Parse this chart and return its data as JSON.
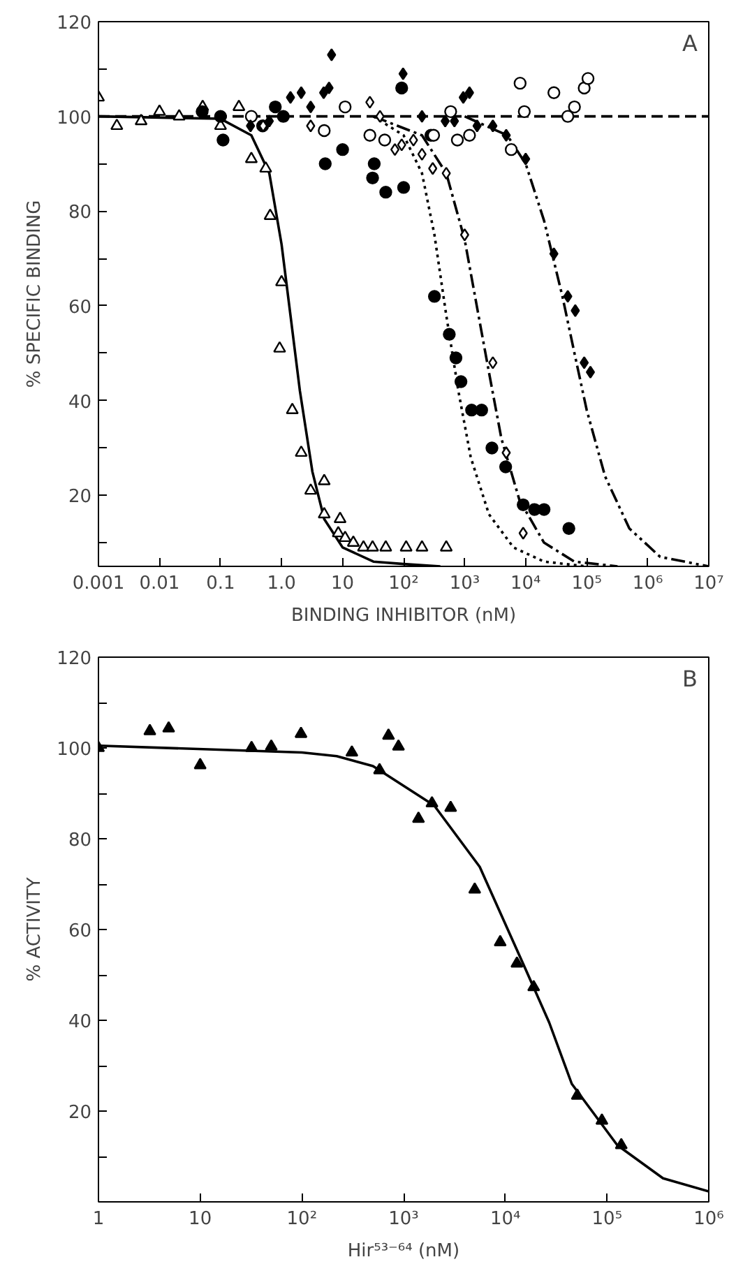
{
  "chart_data": [
    {
      "type": "scatter",
      "title": "A",
      "xlabel": "BINDING INHIBITOR (nM)",
      "ylabel": "% SPECIFIC BINDING",
      "log": "x",
      "grid": false,
      "xlim": [
        0.001,
        10000000
      ],
      "ylim": [
        5,
        120
      ],
      "xticks": [
        {
          "value": 0.001,
          "label": "0.001"
        },
        {
          "value": 0.01,
          "label": "0.01"
        },
        {
          "value": 0.1,
          "label": "0.1"
        },
        {
          "value": 1,
          "label": "1.0"
        },
        10,
        {
          "value": 100,
          "label": "10²"
        },
        {
          "value": 1000,
          "label": "10³"
        },
        {
          "value": 10000,
          "label": "10⁴"
        },
        {
          "value": 100000,
          "label": "10⁵"
        },
        {
          "value": 1000000,
          "label": "10⁶"
        },
        {
          "value": 10000000,
          "label": "10⁷"
        }
      ],
      "yticks": [
        {
          "value": 10,
          "label": null
        },
        20,
        {
          "value": 30,
          "label": null
        },
        40,
        {
          "value": 50,
          "label": null
        },
        60,
        {
          "value": 70,
          "label": null
        },
        80,
        {
          "value": 90,
          "label": null
        },
        100,
        {
          "value": 110,
          "label": null
        },
        120
      ],
      "series": [
        {
          "type": "line",
          "color": "#000000",
          "line_style": "solid",
          "marker": "none",
          "x": [
            0.001,
            0.1,
            0.32,
            0.63,
            1.0,
            1.4,
            2.0,
            3.2,
            5.0,
            10,
            32,
            100,
            400
          ],
          "values": [
            100,
            99.5,
            96,
            88,
            73,
            58,
            42,
            25,
            15,
            9,
            6,
            5.5,
            5
          ]
        },
        {
          "type": "line",
          "color": "#000000",
          "line_style": "dotted",
          "marker": "none",
          "x": [
            32,
            100,
            200,
            320,
            500,
            790,
            1260,
            2500,
            6300,
            20000,
            100000
          ],
          "values": [
            100,
            96,
            88,
            75,
            58,
            42,
            28,
            16,
            9,
            6,
            5
          ]
        },
        {
          "type": "line",
          "color": "#000000",
          "line_style": "dashdot",
          "marker": "none",
          "x": [
            32,
            200,
            500,
            1000,
            1580,
            2500,
            4000,
            7900,
            20000,
            63000,
            320000
          ],
          "values": [
            100,
            96,
            88,
            74,
            60,
            46,
            32,
            19,
            10,
            6,
            5
          ]
        },
        {
          "type": "line",
          "color": "#000000",
          "line_style": "dashdotdot",
          "marker": "none",
          "x": [
            1000,
            5000,
            10000,
            20000,
            40000,
            63000,
            100000,
            200000,
            500000,
            1600000,
            10000000
          ],
          "values": [
            100,
            96,
            90,
            78,
            62,
            50,
            38,
            24,
            13,
            7,
            5
          ]
        },
        {
          "type": "line",
          "color": "#000000",
          "line_style": "dashed",
          "marker": "none",
          "x": [
            0.001,
            10000000
          ],
          "values": [
            100,
            100
          ]
        },
        {
          "type": "scatter",
          "color": "#ffffff",
          "marker": "triangle",
          "x": [
            0.001,
            0.002,
            0.005,
            0.01,
            0.021,
            0.051,
            0.1,
            0.2,
            0.32,
            0.55,
            0.65,
            1.0,
            0.93,
            1.5,
            2.1,
            3.0,
            5.0,
            5.0,
            9.1,
            8.5,
            11,
            15,
            22,
            31,
            51,
            110,
            200,
            500
          ],
          "values": [
            104,
            98,
            99,
            101,
            100,
            102,
            98,
            102,
            91,
            89,
            79,
            65,
            51,
            38,
            29,
            21,
            23,
            16,
            15,
            12,
            11,
            10,
            9,
            9,
            9,
            9,
            9,
            9
          ]
        },
        {
          "type": "scatter",
          "color": "#000000",
          "marker": "circle",
          "x": [
            0.05,
            0.1,
            0.11,
            0.49,
            0.79,
            1.07,
            5.2,
            10,
            31,
            33,
            51,
            100,
            93,
            280,
            320,
            560,
            720,
            870,
            1300,
            1900,
            2800,
            4700,
            9100,
            14000,
            20000,
            51000
          ],
          "values": [
            101,
            100,
            95,
            98,
            102,
            100,
            90,
            93,
            87,
            90,
            84,
            85,
            106,
            96,
            62,
            54,
            49,
            44,
            38,
            38,
            30,
            26,
            18,
            17,
            17,
            13
          ]
        },
        {
          "type": "scatter",
          "color": "#ffffff",
          "marker": "diamond",
          "x": [
            0.5,
            3.0,
            28,
            41,
            72,
            93,
            145,
            200,
            300,
            500,
            1000,
            2900,
            4800,
            9100
          ],
          "values": [
            98,
            98,
            103,
            100,
            93,
            94,
            95,
            92,
            89,
            88,
            75,
            48,
            29,
            12
          ]
        },
        {
          "type": "scatter",
          "color": "#ffffff",
          "marker": "circle",
          "x": [
            0.32,
            5.0,
            11,
            28,
            49,
            310,
            590,
            760,
            1200,
            5800,
            8100,
            9500,
            29000,
            49000,
            63000,
            91000,
            105000
          ],
          "values": [
            100,
            97,
            102,
            96,
            95,
            96,
            101,
            95,
            96,
            93,
            107,
            101,
            105,
            100,
            102,
            106,
            108
          ]
        },
        {
          "type": "scatter",
          "color": "#000000",
          "marker": "diamond",
          "x": [
            0.31,
            0.63,
            1.4,
            2.1,
            3.0,
            4.9,
            6.6,
            6.0,
            98,
            200,
            480,
            680,
            950,
            1200,
            1600,
            2900,
            4800,
            10000,
            29000,
            49000,
            65000,
            91000,
            115000
          ],
          "values": [
            98,
            99,
            104,
            105,
            102,
            105,
            113,
            106,
            109,
            100,
            99,
            99,
            104,
            105,
            98,
            98,
            96,
            91,
            71,
            62,
            59,
            48,
            46
          ]
        }
      ]
    },
    {
      "type": "scatter",
      "title": "B",
      "xlabel": "Hir⁵³⁻⁶⁴ (nM)",
      "ylabel": "% ACTIVITY",
      "log": "x",
      "grid": false,
      "xlim": [
        1,
        1000000
      ],
      "ylim": [
        0,
        120
      ],
      "xticks": [
        1,
        10,
        {
          "value": 100,
          "label": "10²"
        },
        {
          "value": 1000,
          "label": "10³"
        },
        {
          "value": 10000,
          "label": "10⁴"
        },
        {
          "value": 100000,
          "label": "10⁵"
        },
        {
          "value": 1000000,
          "label": "10⁶"
        }
      ],
      "yticks": [
        {
          "value": 10,
          "label": null
        },
        20,
        {
          "value": 30,
          "label": null
        },
        40,
        {
          "value": 50,
          "label": null
        },
        60,
        {
          "value": 70,
          "label": null
        },
        80,
        {
          "value": 90,
          "label": null
        },
        100,
        {
          "value": 110,
          "label": null
        },
        120
      ],
      "series": [
        {
          "type": "line",
          "color": "#000000",
          "line_style": "solid",
          "marker": "none",
          "x": [
            1,
            100,
            220,
            500,
            2000,
            5600,
            16000,
            27000,
            45000,
            126000,
            355000,
            1000000
          ],
          "values": [
            100.5,
            99,
            98.2,
            96,
            87.3,
            73.8,
            51,
            39.5,
            26,
            12.5,
            5.2,
            2.3
          ]
        },
        {
          "type": "scatter",
          "color": "#000000",
          "marker": "triangle",
          "x": [
            1,
            3.2,
            4.9,
            10,
            32,
            50,
            98,
            310,
            580,
            710,
            890,
            1400,
            1900,
            2900,
            5000,
            8900,
            13000,
            19000,
            51000,
            89000,
            138000
          ],
          "values": [
            100,
            103.7,
            104.3,
            96.2,
            100,
            100.3,
            103.1,
            99,
            95.1,
            102.7,
            100.3,
            84.4,
            87.8,
            86.8,
            68.8,
            57.2,
            52.5,
            47.3,
            23.4,
            17.9,
            12.5
          ]
        }
      ]
    }
  ]
}
